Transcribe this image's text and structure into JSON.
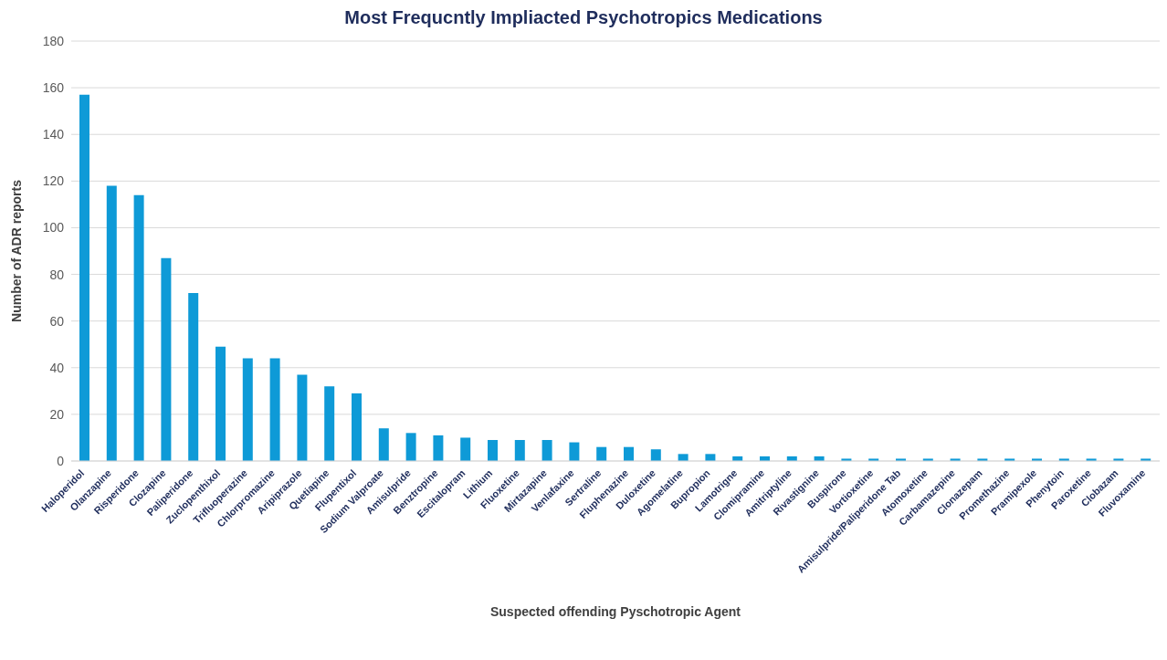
{
  "chart_data": {
    "type": "bar",
    "title": "Most Frequcntly Impliacted Psychotropics Medications",
    "xlabel": "Suspected offending Pyschotropic Agent",
    "ylabel": "Number of ADR reports",
    "categories": [
      "Haloperidol",
      "Olanzapine",
      "Risperidone",
      "Clozapine",
      "Paliperidone",
      "Zuclopenthixol",
      "Trifluoperazine",
      "Chlorpromazine",
      "Aripiprazole",
      "Quetiapine",
      "Flupentixol",
      "Sodium Valproate",
      "Amisulpride",
      "Benztropine",
      "Escitalopram",
      "Lithium",
      "Fluoxetine",
      "Mirtazapine",
      "Venlafaxine",
      "Sertraline",
      "Fluphenazine",
      "Duloxetine",
      "Agomelatine",
      "Bupropion",
      "Lamotrigne",
      "Clomipramine",
      "Amitriptyline",
      "Rivastignine",
      "Buspirone",
      "Vortioxetine",
      "Amisulpride/Paliperidone Tab",
      "Atomoxetine",
      "Carbamazepine",
      "Clonazepam",
      "Promethazine",
      "Pramipexole",
      "Phenytoin",
      "Paroxetine",
      "Clobazam",
      "Fluvoxamine"
    ],
    "series": [
      {
        "color": "#0e9ad7",
        "values": [
          157,
          118,
          114,
          87,
          72,
          49,
          44,
          44,
          37,
          32,
          29,
          14,
          12,
          11,
          10,
          9,
          9,
          9,
          8,
          6,
          6,
          5,
          3,
          3,
          2,
          2,
          2,
          2,
          1,
          1,
          1,
          1,
          1,
          1,
          1,
          1,
          1,
          1,
          1,
          1
        ]
      }
    ],
    "ylim": [
      0,
      180
    ],
    "yticks": [
      0,
      20,
      40,
      60,
      80,
      100,
      120,
      140,
      160,
      180
    ],
    "grid": "y",
    "legend": false
  }
}
